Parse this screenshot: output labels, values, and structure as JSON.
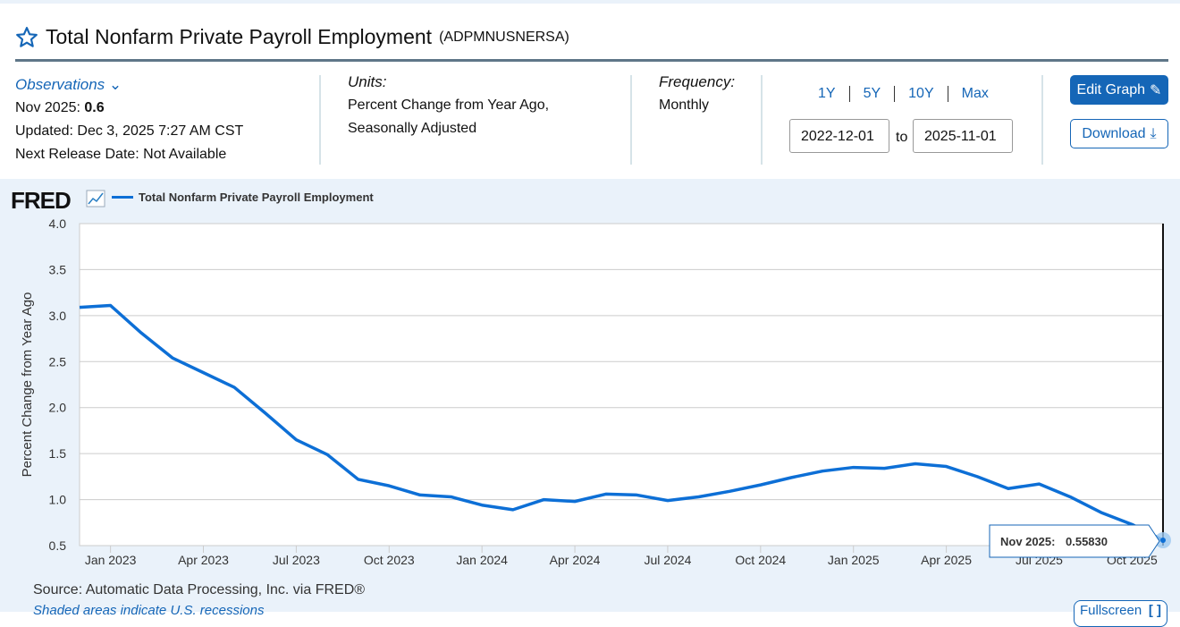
{
  "header": {
    "title": "Total Nonfarm Private Payroll Employment",
    "series_id": "(ADPMNUSNERSA)"
  },
  "observations": {
    "label": "Observations",
    "latest_date": "Nov 2025:",
    "latest_value": "0.6",
    "updated": "Updated: Dec 3, 2025 7:27 AM CST",
    "next_release": "Next Release Date: Not Available"
  },
  "units": {
    "label": "Units:",
    "line1": "Percent Change from Year Ago,",
    "line2": "Seasonally Adjusted"
  },
  "frequency": {
    "label": "Frequency:",
    "value": "Monthly"
  },
  "range": {
    "buttons": [
      "1Y",
      "5Y",
      "10Y",
      "Max"
    ],
    "start": "2022-12-01",
    "to": "to",
    "end": "2025-11-01"
  },
  "actions": {
    "edit": "Edit Graph",
    "download": "Download"
  },
  "footer": {
    "source": "Source: Automatic Data Processing, Inc. via FRED®",
    "shaded": "Shaded areas indicate U.S. recessions",
    "full": "Fullscreen"
  },
  "chart_data": {
    "type": "line",
    "logo": "FRED",
    "legend": [
      "Total Nonfarm Private Payroll Employment"
    ],
    "ylabel": "Percent Change from Year Ago",
    "ylim": [
      0.5,
      4.0
    ],
    "yticks": [
      "0.5",
      "1.0",
      "1.5",
      "2.0",
      "2.5",
      "3.0",
      "3.5",
      "4.0"
    ],
    "xticks": [
      "Jan 2023",
      "Apr 2023",
      "Jul 2023",
      "Oct 2023",
      "Jan 2024",
      "Apr 2024",
      "Jul 2024",
      "Oct 2024",
      "Jan 2025",
      "Apr 2025",
      "Jul 2025",
      "Oct 2025"
    ],
    "color": "#0d6fd6",
    "grid": true,
    "x_start": "2022-12",
    "x_end": "2025-11",
    "values": [
      3.09,
      3.11,
      2.81,
      2.54,
      2.38,
      2.22,
      1.94,
      1.65,
      1.49,
      1.22,
      1.15,
      1.05,
      1.03,
      0.94,
      0.89,
      1.0,
      0.98,
      1.06,
      1.05,
      0.99,
      1.03,
      1.09,
      1.16,
      1.24,
      1.31,
      1.35,
      1.34,
      1.39,
      1.36,
      1.25,
      1.12,
      1.17,
      1.03,
      0.86,
      0.73,
      0.5583
    ],
    "tooltip": {
      "date": "Nov 2025:",
      "value": "0.55830"
    }
  }
}
